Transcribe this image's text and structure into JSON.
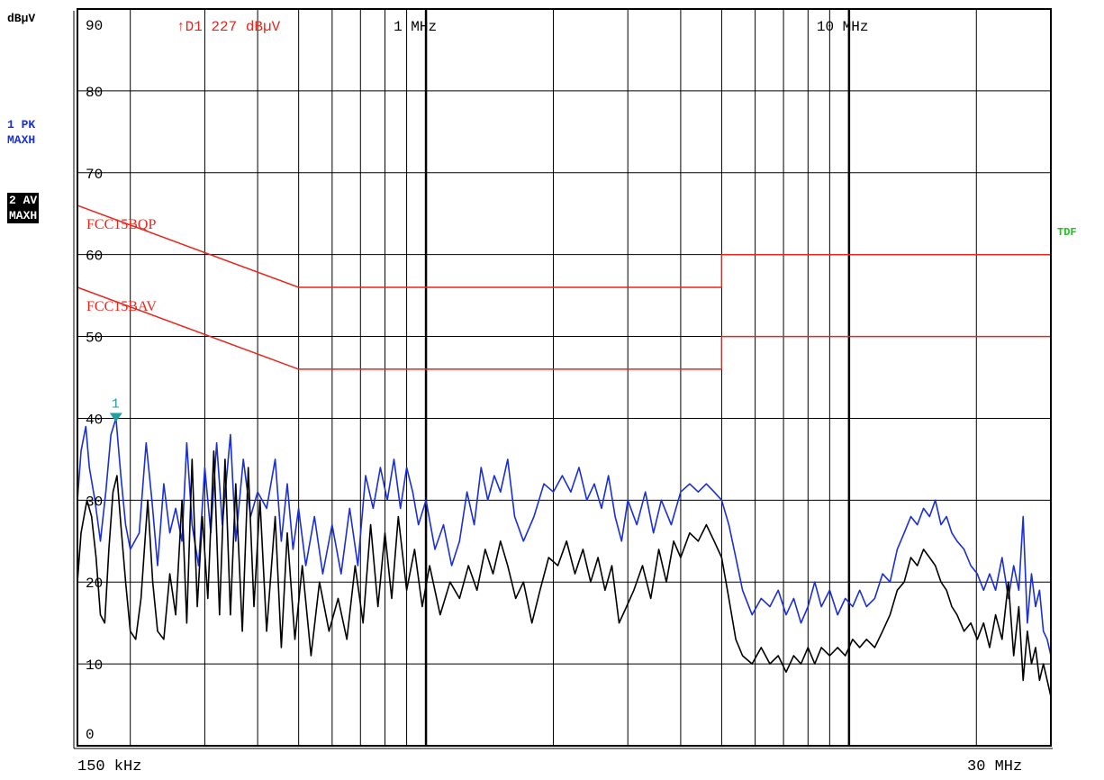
{
  "header": {
    "unit": "dBµV",
    "trace1": [
      "1 PK",
      "MAXH"
    ],
    "trace2": [
      "2 AV",
      "MAXH"
    ],
    "tdf": "TDF",
    "delta_readout": "↑D1 227 dBµV",
    "freq_start": "150 kHz",
    "freq_stop": "30 MHz",
    "marker_label": "1"
  },
  "chart_data": {
    "type": "line",
    "x_scale": "log",
    "x_range_hz": [
      150000,
      30000000
    ],
    "ylim": [
      0,
      90
    ],
    "y_ticks": [
      0,
      10,
      20,
      30,
      40,
      50,
      60,
      70,
      80,
      90
    ],
    "x_tick_labels": [
      {
        "f": 1000000,
        "label": "1 MHz"
      },
      {
        "f": 10000000,
        "label": "10 MHz"
      }
    ],
    "grid": true,
    "colors": {
      "trace1": "#1a2fd6",
      "trace2": "#000000",
      "limit": "#e8261c",
      "marker": "#20a0a0",
      "tdf": "#22c022"
    },
    "limit_lines": [
      {
        "name": "FCC15BQP",
        "points": [
          [
            150000,
            66
          ],
          [
            500000,
            56
          ],
          [
            5000000,
            56
          ],
          [
            5000000,
            60
          ],
          [
            30000000,
            60
          ]
        ]
      },
      {
        "name": "FCC15BAV",
        "points": [
          [
            150000,
            56
          ],
          [
            500000,
            46
          ],
          [
            5000000,
            46
          ],
          [
            5000000,
            50
          ],
          [
            30000000,
            50
          ]
        ]
      }
    ],
    "marker": {
      "label": "1",
      "f": 185000,
      "value": 40
    },
    "series": [
      {
        "name": "1 PK MAXH",
        "points": [
          [
            150000,
            30
          ],
          [
            153000,
            36
          ],
          [
            157000,
            39
          ],
          [
            160000,
            34
          ],
          [
            165000,
            30
          ],
          [
            170000,
            25
          ],
          [
            175000,
            31
          ],
          [
            180000,
            38
          ],
          [
            185000,
            40
          ],
          [
            190000,
            33
          ],
          [
            195000,
            27
          ],
          [
            200000,
            24
          ],
          [
            210000,
            26
          ],
          [
            218000,
            37
          ],
          [
            225000,
            30
          ],
          [
            232000,
            22
          ],
          [
            240000,
            32
          ],
          [
            248000,
            26
          ],
          [
            256000,
            29
          ],
          [
            265000,
            25
          ],
          [
            272000,
            37
          ],
          [
            280000,
            27
          ],
          [
            290000,
            22
          ],
          [
            300000,
            34
          ],
          [
            310000,
            26
          ],
          [
            320000,
            37
          ],
          [
            330000,
            27
          ],
          [
            345000,
            38
          ],
          [
            355000,
            25
          ],
          [
            370000,
            35
          ],
          [
            385000,
            28
          ],
          [
            400000,
            31
          ],
          [
            420000,
            29
          ],
          [
            440000,
            35
          ],
          [
            455000,
            25
          ],
          [
            470000,
            32
          ],
          [
            485000,
            24
          ],
          [
            500000,
            29
          ],
          [
            520000,
            22
          ],
          [
            545000,
            28
          ],
          [
            570000,
            21
          ],
          [
            600000,
            27
          ],
          [
            630000,
            21
          ],
          [
            660000,
            29
          ],
          [
            690000,
            22
          ],
          [
            720000,
            33
          ],
          [
            750000,
            29
          ],
          [
            780000,
            34
          ],
          [
            810000,
            30
          ],
          [
            840000,
            35
          ],
          [
            870000,
            29
          ],
          [
            900000,
            34
          ],
          [
            930000,
            31
          ],
          [
            960000,
            27
          ],
          [
            1000000,
            30
          ],
          [
            1050000,
            24
          ],
          [
            1100000,
            27
          ],
          [
            1150000,
            22
          ],
          [
            1200000,
            25
          ],
          [
            1250000,
            31
          ],
          [
            1300000,
            27
          ],
          [
            1350000,
            34
          ],
          [
            1400000,
            30
          ],
          [
            1450000,
            33
          ],
          [
            1500000,
            31
          ],
          [
            1560000,
            35
          ],
          [
            1620000,
            28
          ],
          [
            1700000,
            25
          ],
          [
            1800000,
            28
          ],
          [
            1900000,
            32
          ],
          [
            2000000,
            31
          ],
          [
            2100000,
            33
          ],
          [
            2200000,
            31
          ],
          [
            2300000,
            34
          ],
          [
            2400000,
            30
          ],
          [
            2500000,
            32
          ],
          [
            2600000,
            29
          ],
          [
            2700000,
            33
          ],
          [
            2800000,
            28
          ],
          [
            2900000,
            25
          ],
          [
            3000000,
            30
          ],
          [
            3150000,
            27
          ],
          [
            3300000,
            31
          ],
          [
            3450000,
            26
          ],
          [
            3600000,
            30
          ],
          [
            3800000,
            27
          ],
          [
            4000000,
            31
          ],
          [
            4200000,
            32
          ],
          [
            4400000,
            31
          ],
          [
            4600000,
            32
          ],
          [
            4800000,
            31
          ],
          [
            5000000,
            30
          ],
          [
            5200000,
            27
          ],
          [
            5400000,
            23
          ],
          [
            5600000,
            19
          ],
          [
            5900000,
            16
          ],
          [
            6200000,
            18
          ],
          [
            6500000,
            17
          ],
          [
            6800000,
            19
          ],
          [
            7100000,
            16
          ],
          [
            7400000,
            18
          ],
          [
            7700000,
            15
          ],
          [
            8000000,
            17
          ],
          [
            8300000,
            20
          ],
          [
            8600000,
            17
          ],
          [
            9000000,
            19
          ],
          [
            9400000,
            16
          ],
          [
            9800000,
            18
          ],
          [
            10200000,
            17
          ],
          [
            10600000,
            19
          ],
          [
            11000000,
            17
          ],
          [
            11500000,
            18
          ],
          [
            12000000,
            21
          ],
          [
            12500000,
            20
          ],
          [
            13000000,
            24
          ],
          [
            13500000,
            26
          ],
          [
            14000000,
            28
          ],
          [
            14500000,
            27
          ],
          [
            15000000,
            29
          ],
          [
            15500000,
            28
          ],
          [
            16000000,
            30
          ],
          [
            16500000,
            27
          ],
          [
            17000000,
            28
          ],
          [
            17500000,
            26
          ],
          [
            18000000,
            25
          ],
          [
            18700000,
            24
          ],
          [
            19400000,
            22
          ],
          [
            20100000,
            21
          ],
          [
            20800000,
            19
          ],
          [
            21500000,
            21
          ],
          [
            22200000,
            19
          ],
          [
            23000000,
            23
          ],
          [
            23800000,
            18
          ],
          [
            24500000,
            22
          ],
          [
            25200000,
            19
          ],
          [
            25800000,
            28
          ],
          [
            26400000,
            15
          ],
          [
            27000000,
            21
          ],
          [
            27600000,
            17
          ],
          [
            28200000,
            19
          ],
          [
            28800000,
            14
          ],
          [
            29400000,
            13
          ],
          [
            30000000,
            11
          ]
        ]
      },
      {
        "name": "2 AV MAXH",
        "points": [
          [
            150000,
            20
          ],
          [
            153000,
            26
          ],
          [
            158000,
            30
          ],
          [
            162000,
            28
          ],
          [
            166000,
            23
          ],
          [
            170000,
            16
          ],
          [
            174000,
            15
          ],
          [
            178000,
            24
          ],
          [
            182000,
            31
          ],
          [
            186000,
            33
          ],
          [
            190000,
            27
          ],
          [
            195000,
            20
          ],
          [
            200000,
            14
          ],
          [
            206000,
            13
          ],
          [
            212000,
            18
          ],
          [
            220000,
            30
          ],
          [
            226000,
            20
          ],
          [
            232000,
            14
          ],
          [
            240000,
            13
          ],
          [
            248000,
            21
          ],
          [
            256000,
            16
          ],
          [
            265000,
            30
          ],
          [
            272000,
            15
          ],
          [
            280000,
            35
          ],
          [
            288000,
            17
          ],
          [
            296000,
            28
          ],
          [
            305000,
            18
          ],
          [
            315000,
            36
          ],
          [
            325000,
            16
          ],
          [
            335000,
            35
          ],
          [
            345000,
            16
          ],
          [
            355000,
            32
          ],
          [
            368000,
            14
          ],
          [
            380000,
            34
          ],
          [
            392000,
            17
          ],
          [
            405000,
            30
          ],
          [
            420000,
            14
          ],
          [
            440000,
            28
          ],
          [
            455000,
            12
          ],
          [
            470000,
            26
          ],
          [
            490000,
            13
          ],
          [
            510000,
            22
          ],
          [
            535000,
            11
          ],
          [
            560000,
            20
          ],
          [
            590000,
            14
          ],
          [
            620000,
            18
          ],
          [
            650000,
            13
          ],
          [
            680000,
            22
          ],
          [
            710000,
            15
          ],
          [
            740000,
            27
          ],
          [
            770000,
            17
          ],
          [
            800000,
            26
          ],
          [
            830000,
            18
          ],
          [
            860000,
            28
          ],
          [
            900000,
            19
          ],
          [
            940000,
            24
          ],
          [
            980000,
            17
          ],
          [
            1020000,
            22
          ],
          [
            1080000,
            16
          ],
          [
            1140000,
            20
          ],
          [
            1200000,
            18
          ],
          [
            1260000,
            22
          ],
          [
            1320000,
            19
          ],
          [
            1380000,
            24
          ],
          [
            1440000,
            21
          ],
          [
            1500000,
            25
          ],
          [
            1560000,
            22
          ],
          [
            1630000,
            18
          ],
          [
            1700000,
            20
          ],
          [
            1780000,
            15
          ],
          [
            1860000,
            19
          ],
          [
            1950000,
            23
          ],
          [
            2050000,
            22
          ],
          [
            2150000,
            25
          ],
          [
            2250000,
            21
          ],
          [
            2350000,
            24
          ],
          [
            2450000,
            20
          ],
          [
            2550000,
            23
          ],
          [
            2650000,
            19
          ],
          [
            2750000,
            22
          ],
          [
            2860000,
            15
          ],
          [
            2980000,
            17
          ],
          [
            3100000,
            19
          ],
          [
            3250000,
            22
          ],
          [
            3400000,
            18
          ],
          [
            3550000,
            24
          ],
          [
            3700000,
            20
          ],
          [
            3850000,
            25
          ],
          [
            4000000,
            23
          ],
          [
            4200000,
            26
          ],
          [
            4400000,
            25
          ],
          [
            4600000,
            27
          ],
          [
            4800000,
            25
          ],
          [
            5000000,
            23
          ],
          [
            5200000,
            18
          ],
          [
            5400000,
            13
          ],
          [
            5600000,
            11
          ],
          [
            5900000,
            10
          ],
          [
            6200000,
            12
          ],
          [
            6500000,
            10
          ],
          [
            6800000,
            11
          ],
          [
            7100000,
            9
          ],
          [
            7400000,
            11
          ],
          [
            7700000,
            10
          ],
          [
            8000000,
            12
          ],
          [
            8300000,
            10
          ],
          [
            8600000,
            12
          ],
          [
            9000000,
            11
          ],
          [
            9400000,
            12
          ],
          [
            9800000,
            11
          ],
          [
            10200000,
            13
          ],
          [
            10600000,
            12
          ],
          [
            11000000,
            13
          ],
          [
            11500000,
            12
          ],
          [
            12000000,
            14
          ],
          [
            12500000,
            16
          ],
          [
            13000000,
            19
          ],
          [
            13500000,
            20
          ],
          [
            14000000,
            23
          ],
          [
            14500000,
            22
          ],
          [
            15000000,
            24
          ],
          [
            15500000,
            23
          ],
          [
            16000000,
            22
          ],
          [
            16500000,
            20
          ],
          [
            17000000,
            19
          ],
          [
            17500000,
            17
          ],
          [
            18000000,
            16
          ],
          [
            18700000,
            14
          ],
          [
            19400000,
            15
          ],
          [
            20100000,
            13
          ],
          [
            20800000,
            15
          ],
          [
            21500000,
            12
          ],
          [
            22200000,
            16
          ],
          [
            23000000,
            13
          ],
          [
            23800000,
            20
          ],
          [
            24500000,
            11
          ],
          [
            25200000,
            17
          ],
          [
            25800000,
            8
          ],
          [
            26400000,
            14
          ],
          [
            27000000,
            10
          ],
          [
            27600000,
            12
          ],
          [
            28200000,
            8
          ],
          [
            28800000,
            10
          ],
          [
            29400000,
            8
          ],
          [
            30000000,
            6
          ]
        ]
      }
    ]
  }
}
